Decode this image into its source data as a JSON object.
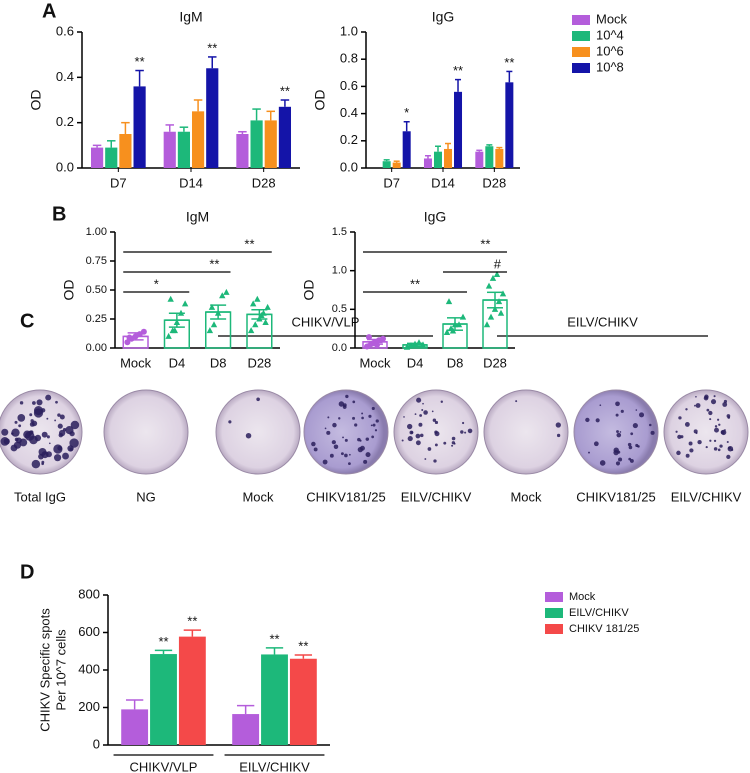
{
  "panel_labels": [
    "A",
    "B",
    "C",
    "D"
  ],
  "chart_data": [
    {
      "type": "bar",
      "title": "IgM",
      "ylabel": "OD",
      "categories": [
        "D7",
        "D14",
        "D28"
      ],
      "ylim": [
        0,
        0.6
      ],
      "yticks": [
        {
          "value": 0,
          "label": "0.0"
        },
        0.2,
        0.4,
        0.6
      ],
      "series": [
        {
          "name": "Mock",
          "color": "#b45ddb",
          "values": [
            0.09,
            0.16,
            0.15
          ],
          "errors": [
            0.01,
            0.03,
            0.01
          ],
          "labels": [
            null,
            null,
            null
          ]
        },
        {
          "name": "10^4",
          "color": "#1db87a",
          "values": [
            0.09,
            0.16,
            0.21
          ],
          "errors": [
            0.03,
            0.02,
            0.05
          ],
          "labels": [
            null,
            null,
            null
          ]
        },
        {
          "name": "10^6",
          "color": "#f7901e",
          "values": [
            0.15,
            0.25,
            0.21
          ],
          "errors": [
            0.05,
            0.05,
            0.04
          ],
          "labels": [
            null,
            null,
            null
          ]
        },
        {
          "name": "10^8",
          "color": "#1414a8",
          "values": [
            0.36,
            0.44,
            0.27
          ],
          "errors": [
            0.07,
            0.05,
            0.03
          ],
          "labels": [
            "**",
            "**",
            "**"
          ]
        }
      ]
    },
    {
      "type": "bar",
      "title": "IgG",
      "ylabel": "OD",
      "categories": [
        "D7",
        "D14",
        "D28"
      ],
      "legend": "right",
      "ylim": [
        0,
        1
      ],
      "yticks": [
        {
          "value": 0,
          "label": "0.0"
        },
        0.2,
        0.4,
        0.6,
        0.8,
        {
          "value": 1,
          "label": "1.0"
        }
      ],
      "series": [
        {
          "name": "Mock",
          "color": "#b45ddb",
          "values": [
            null,
            0.07,
            0.12
          ],
          "errors": [
            null,
            0.02,
            0.01
          ],
          "labels": [
            null,
            null,
            null
          ]
        },
        {
          "name": "10^4",
          "color": "#1db87a",
          "values": [
            0.05,
            0.12,
            0.16
          ],
          "errors": [
            0.01,
            0.04,
            0.01
          ],
          "labels": [
            null,
            null,
            null
          ]
        },
        {
          "name": "10^6",
          "color": "#f7901e",
          "values": [
            0.04,
            0.14,
            0.14
          ],
          "errors": [
            0.01,
            0.04,
            0.01
          ],
          "labels": [
            null,
            null,
            null
          ]
        },
        {
          "name": "10^8",
          "color": "#1414a8",
          "values": [
            0.27,
            0.56,
            0.63
          ],
          "errors": [
            0.07,
            0.09,
            0.08
          ],
          "labels": [
            "*",
            "**",
            "**"
          ]
        }
      ]
    },
    {
      "type": "bar_scatter",
      "title": "IgM",
      "ylabel": "OD",
      "categories": [
        "Mock",
        "D4",
        "D8",
        "D28"
      ],
      "colors": [
        "#b45ddb",
        "#1db87a",
        "#1db87a",
        "#1db87a"
      ],
      "ylim": [
        0,
        1
      ],
      "yticks": [
        {
          "value": 0,
          "label": "0.00"
        },
        {
          "value": 0.25,
          "label": "0.25"
        },
        {
          "value": 0.5,
          "label": "0.50"
        },
        {
          "value": 0.75,
          "label": "0.75"
        },
        {
          "value": 1,
          "label": "1.00"
        }
      ],
      "values": [
        0.1,
        0.24,
        0.31,
        0.29
      ],
      "errors": [
        0.03,
        0.06,
        0.06,
        0.04
      ],
      "points": [
        [
          0.05,
          0.08,
          0.1,
          0.12,
          0.14,
          0.09
        ],
        [
          0.1,
          0.15,
          0.22,
          0.3,
          0.38,
          0.42,
          0.15
        ],
        [
          0.15,
          0.2,
          0.3,
          0.45,
          0.48,
          0.35
        ],
        [
          0.15,
          0.2,
          0.25,
          0.3,
          0.35,
          0.38,
          0.42,
          0.28,
          0.22
        ]
      ],
      "comparisons": [
        {
          "from": "Mock",
          "to": "D4",
          "label": "*"
        },
        {
          "from": "Mock",
          "to": "D8",
          "label": "**"
        },
        {
          "from": "Mock",
          "to": "D28",
          "label": "**"
        }
      ]
    },
    {
      "type": "bar_scatter",
      "title": "IgG",
      "ylabel": "OD",
      "categories": [
        "Mock",
        "D4",
        "D8",
        "D28"
      ],
      "colors": [
        "#b45ddb",
        "#1db87a",
        "#1db87a",
        "#1db87a"
      ],
      "ylim": [
        0,
        1.5
      ],
      "yticks": [
        {
          "value": 0,
          "label": "0.0"
        },
        0.5,
        {
          "value": 1,
          "label": "1.0"
        },
        1.5
      ],
      "values": [
        0.08,
        0.04,
        0.31,
        0.62
      ],
      "errors": [
        0.03,
        0.02,
        0.08,
        0.1
      ],
      "points": [
        [
          0.02,
          0.05,
          0.08,
          0.1,
          0.12,
          0.14,
          0.06,
          0.04,
          0.1
        ],
        [
          0.01,
          0.03,
          0.05,
          0.07,
          0.04
        ],
        [
          0.2,
          0.25,
          0.3,
          0.3,
          0.4,
          0.6,
          0.22
        ],
        [
          0.3,
          0.4,
          0.5,
          0.6,
          0.7,
          0.8,
          0.9,
          0.95,
          0.45
        ]
      ],
      "comparisons": [
        {
          "from": "Mock",
          "to": "D8",
          "label": "**"
        },
        {
          "from": "D8",
          "to": "D28",
          "label": "#"
        },
        {
          "from": "Mock",
          "to": "D28",
          "label": "**"
        }
      ]
    },
    {
      "type": "bar",
      "ylabel": [
        "CHIKV Specific spots",
        "Per 10^7 cells"
      ],
      "categories": [
        "CHIKV/VLP",
        "EILV/CHIKV"
      ],
      "legend": "right",
      "x_group_lines": true,
      "ylim": [
        0,
        800
      ],
      "yticks": [
        0,
        200,
        400,
        600,
        800
      ],
      "series": [
        {
          "name": "Mock",
          "color": "#b45ddb",
          "values": [
            190,
            165
          ],
          "errors": [
            50,
            45
          ],
          "labels": [
            null,
            null
          ]
        },
        {
          "name": "EILV/CHIKV",
          "color": "#1db87a",
          "values": [
            485,
            483
          ],
          "errors": [
            20,
            35
          ],
          "labels": [
            "**",
            "**"
          ]
        },
        {
          "name": "CHIKV 181/25",
          "color": "#f44949",
          "values": [
            578,
            460
          ],
          "errors": [
            35,
            20
          ],
          "labels": [
            "**",
            "**"
          ]
        }
      ]
    }
  ],
  "panel_c": {
    "groups": [
      "CHIKV/VLP",
      "EILV/CHIKV"
    ],
    "plates": [
      "Total IgG",
      "NG",
      "Mock",
      "CHIKV181/25",
      "EILV/CHIKV",
      "Mock",
      "CHIKV181/25",
      "EILV/CHIKV"
    ]
  }
}
